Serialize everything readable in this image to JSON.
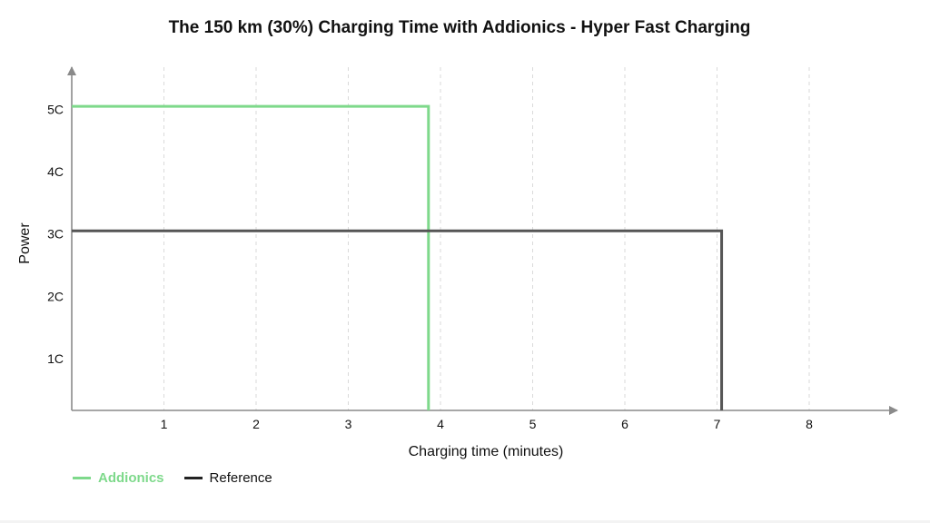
{
  "chart_data": {
    "type": "line",
    "title": "The 150 km (30%) Charging Time with Addionics  - Hyper Fast Charging",
    "xlabel": "Charging time (minutes)",
    "ylabel": "Power",
    "xlim": [
      0,
      9
    ],
    "ylim": [
      0.3,
      5.5
    ],
    "x_ticks": [
      1,
      2,
      3,
      4,
      5,
      6,
      7,
      8
    ],
    "x_tick_labels": [
      "1",
      "2",
      "3",
      "4",
      "5",
      "6",
      "7",
      "8"
    ],
    "y_ticks": [
      1,
      2,
      3,
      4,
      5
    ],
    "y_tick_labels": [
      "1C",
      "2C",
      "3C",
      "4C",
      "5C"
    ],
    "grid": "vertical-dashed",
    "legend_position": "bottom-left",
    "series": [
      {
        "name": "Addionics",
        "color": "#7ed98b",
        "x": [
          0,
          3.87,
          3.87
        ],
        "y": [
          5.05,
          5.05,
          0.3
        ]
      },
      {
        "name": "Reference",
        "color": "#555555",
        "x": [
          0,
          7.05,
          7.05
        ],
        "y": [
          3.05,
          3.05,
          0.3
        ]
      }
    ]
  }
}
